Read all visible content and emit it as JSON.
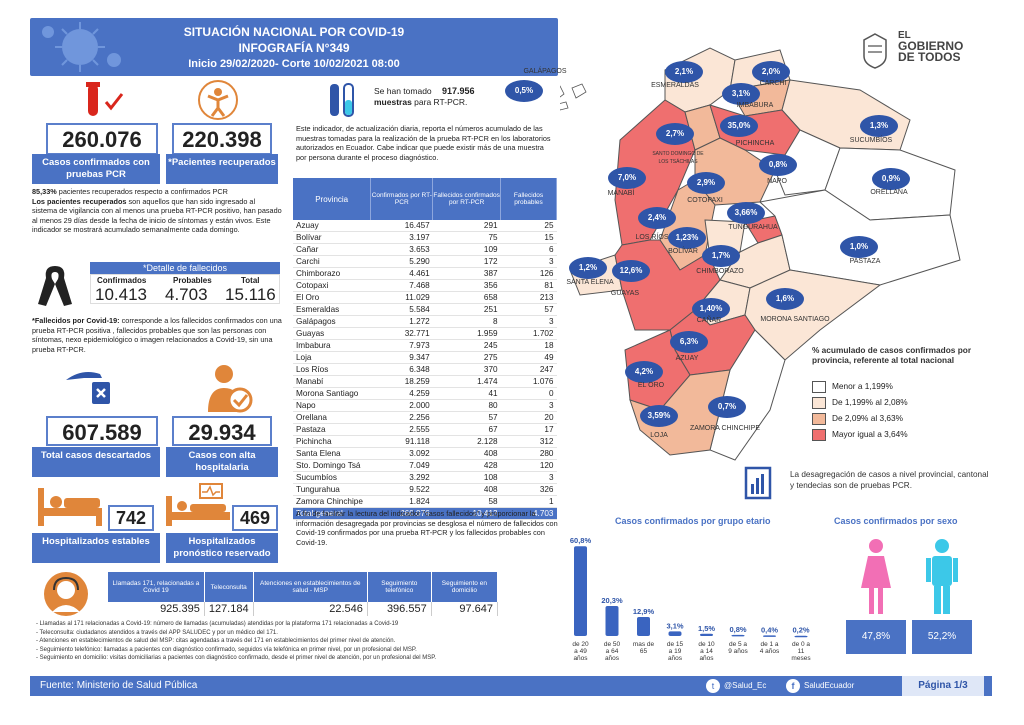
{
  "header": {
    "title": "SITUACIÓN NACIONAL POR  COVID-19",
    "subtitle": "INFOGRAFÍA N°349",
    "period": "Inicio 29/02/2020- Corte 10/02/2021 08:00"
  },
  "logo": {
    "line1": "EL",
    "line2": "GOBIERNO",
    "line3": "DE TODOS"
  },
  "confirmed": {
    "value": "260.076",
    "label": "Casos confirmados con pruebas PCR"
  },
  "recovered": {
    "value": "220.398",
    "label": "*Pacientes recuperados"
  },
  "recovered_note": {
    "pct": "85,33%",
    "line1": " pacientes recuperados respecto a confirmados PCR",
    "bold": "Los pacientes recuperados",
    "rest": " son aquellos que han sido ingresado al sistema de vigilancia con al menos una prueba RT-PCR positivo, han pasado al menos 29 días desde la fecha de inicio de síntomas y están vivos. Este indicador se mostrará acumulado semanalmente cada domingo."
  },
  "deaths": {
    "title": "*Detalle de fallecidos",
    "headers": [
      "Confirmados",
      "Probables",
      "Total"
    ],
    "values": [
      "10.413",
      "4.703",
      "15.116"
    ],
    "note_bold": "*Fallecidos por Covid-19:",
    "note": " corresponde a los fallecidos confirmados con una prueba RT-PCR positiva , fallecidos probables que son las personas con síntomas, nexo epidemiológico o imagen relacionados a Covid-19, sin una prueba RT-PCR."
  },
  "discarded": {
    "value": "607.589",
    "label": "Total casos descartados"
  },
  "discharged": {
    "value": "29.934",
    "label": "Casos con alta hospitalaria"
  },
  "hosp_stable": {
    "value": "742",
    "label": "Hospitalizados estables"
  },
  "hosp_reserved": {
    "value": "469",
    "label": "Hospitalizados pronóstico reservado"
  },
  "samples": {
    "pre": "Se han tomado",
    "value": "917.956",
    "bold2": "muestras",
    "post": " para RT-PCR.",
    "note": "Este indicador, de actualización diaria, reporta el números acumulado de las muestras tomadas para la realización de la prueba RT-PCR en los laboratorios autorizados en Ecuador. Cabe indicar que puede existir más de una muestra por persona durante el proceso diagnóstico."
  },
  "province_table": {
    "headers": [
      "Provincia",
      "Confirmados por RT-PCR",
      "Fallecidos confirmados por RT-PCR",
      "Fallecidos probables"
    ],
    "rows": [
      [
        "Azuay",
        "16.457",
        "291",
        "25"
      ],
      [
        "Bolívar",
        "3.197",
        "75",
        "15"
      ],
      [
        "Cañar",
        "3.653",
        "109",
        "6"
      ],
      [
        "Carchi",
        "5.290",
        "172",
        "3"
      ],
      [
        "Chimborazo",
        "4.461",
        "387",
        "126"
      ],
      [
        "Cotopaxi",
        "7.468",
        "356",
        "81"
      ],
      [
        "El Oro",
        "11.029",
        "658",
        "213"
      ],
      [
        "Esmeraldas",
        "5.584",
        "251",
        "57"
      ],
      [
        "Galápagos",
        "1.272",
        "8",
        "3"
      ],
      [
        "Guayas",
        "32.771",
        "1.959",
        "1.702"
      ],
      [
        "Imbabura",
        "7.973",
        "245",
        "18"
      ],
      [
        "Loja",
        "9.347",
        "275",
        "49"
      ],
      [
        "Los Ríos",
        "6.348",
        "370",
        "247"
      ],
      [
        "Manabí",
        "18.259",
        "1.474",
        "1.076"
      ],
      [
        "Morona Santiago",
        "4.259",
        "41",
        "0"
      ],
      [
        "Napo",
        "2.000",
        "80",
        "3"
      ],
      [
        "Orellana",
        "2.256",
        "57",
        "20"
      ],
      [
        "Pastaza",
        "2.555",
        "67",
        "17"
      ],
      [
        "Pichincha",
        "91.118",
        "2.128",
        "312"
      ],
      [
        "Santa Elena",
        "3.092",
        "408",
        "280"
      ],
      [
        "Sto. Domingo Tsá",
        "7.049",
        "428",
        "120"
      ],
      [
        "Sucumbíos",
        "3.292",
        "108",
        "3"
      ],
      [
        "Tungurahua",
        "9.522",
        "408",
        "326"
      ],
      [
        "Zamora Chinchipe",
        "1.824",
        "58",
        "1"
      ]
    ],
    "total": [
      "Total general",
      "260.076",
      "10.413",
      "4.703"
    ],
    "note": "A fin de facilitar la lectura del indicador \"casos fallecidos\" y proporcionar la información desagregada por provincias se desglosa el número de fallecidos con Covid-19 confirmados por una prueba RT-PCR y los fallecidos probables con Covid-19."
  },
  "map": {
    "labels": [
      {
        "name": "GALÁPAGOS",
        "pct": "0,5%"
      },
      {
        "name": "ESMERALDAS",
        "pct": "2,1%"
      },
      {
        "name": "CARCHI",
        "pct": "2,0%"
      },
      {
        "name": "IMBABURA",
        "pct": "3,1%"
      },
      {
        "name": "SUCUMBÍOS",
        "pct": "1,3%"
      },
      {
        "name": "PICHINCHA",
        "pct": "35,0%"
      },
      {
        "name": "SANTO DOMINGO DE LOS TSÁCHILAS",
        "pct": "2,7%"
      },
      {
        "name": "NAPO",
        "pct": "0,8%"
      },
      {
        "name": "ORELLANA",
        "pct": "0,9%"
      },
      {
        "name": "MANABÍ",
        "pct": "7,0%"
      },
      {
        "name": "COTOPAXI",
        "pct": "2,9%"
      },
      {
        "name": "TUNGURAHUA",
        "pct": "3,66%"
      },
      {
        "name": "LOS RÍOS",
        "pct": "2,4%"
      },
      {
        "name": "BOLÍVAR",
        "pct": "1,23%"
      },
      {
        "name": "PASTAZA",
        "pct": "1,0%"
      },
      {
        "name": "CHIMBORAZO",
        "pct": "1,7%"
      },
      {
        "name": "SANTA ELENA",
        "pct": "1,2%"
      },
      {
        "name": "GUAYAS",
        "pct": "12,6%"
      },
      {
        "name": "CAÑAR",
        "pct": "1,40%"
      },
      {
        "name": "MORONA SANTIAGO",
        "pct": "1,6%"
      },
      {
        "name": "AZUAY",
        "pct": "6,3%"
      },
      {
        "name": "EL ORO",
        "pct": "4,2%"
      },
      {
        "name": "ZAMORA CHINCHIPE",
        "pct": "0,7%"
      },
      {
        "name": "LOJA",
        "pct": "3,59%"
      }
    ],
    "legend_title": "% acumulado de casos confirmados por provincia, referente al total nacional",
    "legend": [
      {
        "label": "Menor a 1,199%",
        "color": "#ffffff"
      },
      {
        "label": "De 1,199% al 2,08%",
        "color": "#fbe6d6"
      },
      {
        "label": "De 2,09% al 3,63%",
        "color": "#f2b99a"
      },
      {
        "label": "Mayor igual a 3,64%",
        "color": "#ef6f6f"
      }
    ],
    "note": "La desagregación de casos a nivel provincial, cantonal y tendecias son de pruebas PCR."
  },
  "calls": {
    "headers": [
      "Llamadas 171, relacionadas a Covid 19",
      "Teleconsulta",
      "Atenciones en establecimientos de salud - MSP",
      "Seguimiento telefónico",
      "Seguimiento en domicilio"
    ],
    "values": [
      "925.395",
      "127.184",
      "22.546",
      "396.557",
      "97.647"
    ],
    "notes": [
      "- Llamadas al 171 relacionadas a Covid-19: número de llamadas (acumuladas) atendidas por la plataforma 171 relacionadas a Covid-19",
      "- Teleconsulta: ciudadanos atendidos a través del APP SALUDEC y por un médico del 171.",
      "- Atenciones en establecimientos de salud del MSP:  citas agendadas a través del 171 en establecimientos del primer nivel de atención.",
      "- Seguimiento telefónico: llamadas a pacientes con diagnóstico confirmado, seguidos vía telefónica en primer nivel, por un profesional del MSP.",
      "- Seguimiento en domicilio: visitas domiciliarias a pacientes con diagnóstico confirmado, desde el primer nivel de atención, por un profesional del MSP."
    ]
  },
  "chart_data": [
    {
      "type": "bar",
      "title": "Casos confirmados por grupo etario",
      "categories": [
        "de 20 a 49 años",
        "de 50 a 64 años",
        "mas de 65",
        "de 15 a 19 años",
        "de 10 a 14 años",
        "de 5 a 9 años",
        "de 1 a 4 años",
        "de 0 a 11 meses"
      ],
      "values": [
        60.8,
        20.3,
        12.9,
        3.1,
        1.5,
        0.8,
        0.4,
        0.2
      ],
      "labels": [
        "60,8%",
        "20,3%",
        "12,9%",
        "3,1%",
        "1,5%",
        "0,8%",
        "0,4%",
        "0,2%"
      ],
      "ylim": [
        0,
        65
      ]
    },
    {
      "type": "bar",
      "title": "Casos confirmados por sexo",
      "categories": [
        "Mujeres",
        "Hombres"
      ],
      "values": [
        47.8,
        52.2
      ],
      "labels": [
        "47,8%",
        "52,2%"
      ]
    }
  ],
  "footer": {
    "source": "Fuente: Ministerio de Salud Pública",
    "twitter": "@Salud_Ec",
    "facebook": "SaludEcuador",
    "page": "Página 1/3"
  },
  "colors": {
    "primary": "#4a72c4",
    "pink": "#f26fb5",
    "cyan": "#3cc8e8",
    "red": "#d9261c",
    "orange": "#e0863a"
  }
}
